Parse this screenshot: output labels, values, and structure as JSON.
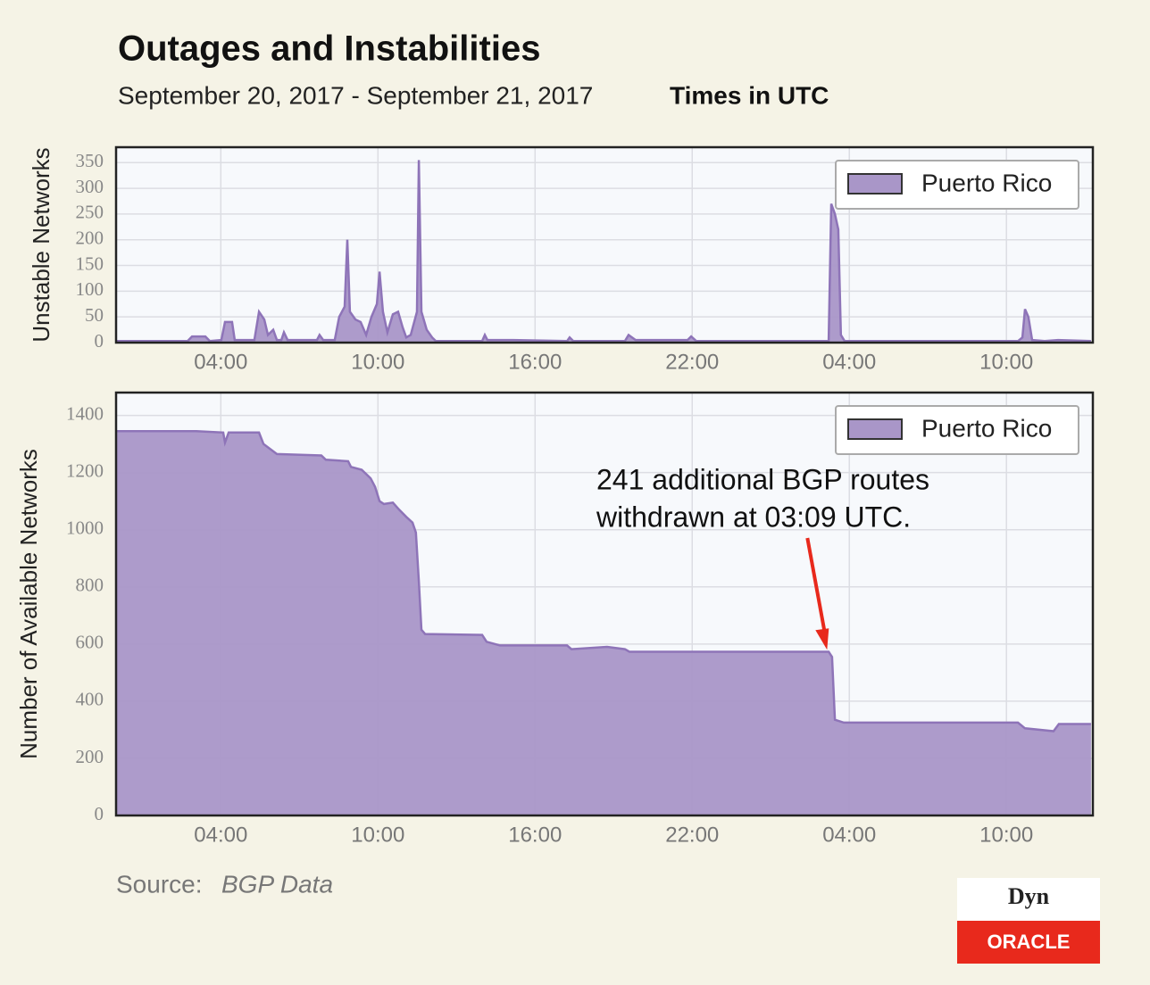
{
  "header": {
    "title": "Outages and Instabilities",
    "subtitle": "September 20, 2017 - September 21, 2017",
    "note": "Times in UTC"
  },
  "source": {
    "label": "Source:",
    "text": "BGP Data"
  },
  "logo": {
    "top": "Dyn",
    "bottom": "ORACLE"
  },
  "chart_data": [
    {
      "type": "area",
      "y_label": "Unstable Networks",
      "xlim": [
        0,
        37.3
      ],
      "ylim": [
        0,
        380
      ],
      "xticks": [
        {
          "value": 4,
          "label": "04:00"
        },
        {
          "value": 10,
          "label": "10:00"
        },
        {
          "value": 16,
          "label": "16:00"
        },
        {
          "value": 22,
          "label": "22:00"
        },
        {
          "value": 28,
          "label": "04:00"
        },
        {
          "value": 34,
          "label": "10:00"
        }
      ],
      "yticks": [
        0,
        50,
        100,
        150,
        200,
        250,
        300,
        350
      ],
      "grid": true,
      "legend": "upper right",
      "series": [
        {
          "name": "Puerto Rico",
          "color": "#a996c8",
          "x": [
            0,
            2.73,
            2.9,
            3.41,
            3.58,
            4.02,
            4.16,
            4.43,
            4.53,
            5.28,
            5.46,
            5.66,
            5.8,
            6.0,
            6.14,
            6.31,
            6.41,
            6.55,
            7.67,
            7.77,
            7.91,
            8.35,
            8.52,
            8.73,
            8.83,
            8.93,
            9.14,
            9.34,
            9.55,
            9.75,
            9.96,
            10.06,
            10.19,
            10.36,
            10.57,
            10.77,
            10.94,
            11.08,
            11.25,
            11.49,
            11.56,
            11.66,
            11.86,
            12.07,
            12.21,
            13.98,
            14.08,
            14.18,
            15.17,
            17.22,
            17.32,
            17.46,
            19.43,
            19.57,
            19.84,
            21.82,
            21.96,
            22.16,
            27.21,
            27.31,
            27.45,
            27.58,
            27.68,
            27.82,
            34.44,
            34.61,
            34.71,
            34.84,
            34.98,
            35.46,
            35.97,
            37.23
          ],
          "values": [
            3,
            3,
            12,
            12,
            3,
            5,
            40,
            40,
            5,
            5,
            60,
            45,
            15,
            25,
            5,
            5,
            20,
            5,
            5,
            15,
            5,
            5,
            50,
            70,
            200,
            60,
            45,
            40,
            15,
            50,
            75,
            138,
            60,
            20,
            55,
            60,
            30,
            10,
            15,
            60,
            355,
            60,
            25,
            10,
            3,
            3,
            15,
            5,
            5,
            3,
            10,
            3,
            3,
            15,
            5,
            5,
            12,
            3,
            3,
            270,
            250,
            220,
            15,
            3,
            3,
            10,
            65,
            50,
            5,
            3,
            5,
            3
          ]
        }
      ]
    },
    {
      "type": "area",
      "y_label": "Number of Available Networks",
      "xlim": [
        0,
        37.3
      ],
      "ylim": [
        0,
        1480
      ],
      "xticks": [
        {
          "value": 4,
          "label": "04:00"
        },
        {
          "value": 10,
          "label": "10:00"
        },
        {
          "value": 16,
          "label": "16:00"
        },
        {
          "value": 22,
          "label": "22:00"
        },
        {
          "value": 28,
          "label": "04:00"
        },
        {
          "value": 34,
          "label": "10:00"
        }
      ],
      "yticks": [
        0,
        200,
        400,
        600,
        800,
        1000,
        1200,
        1400
      ],
      "grid": true,
      "legend": "upper right",
      "annotation": {
        "lines": [
          "241 additional BGP routes",
          "withdrawn at 03:09 UTC."
        ],
        "x": 27.15,
        "y": 580,
        "color": "#e8291c"
      },
      "series": [
        {
          "name": "Puerto Rico",
          "color": "#a996c8",
          "x": [
            0,
            3.07,
            4.09,
            4.16,
            4.3,
            5.46,
            5.63,
            6.14,
            7.84,
            8.01,
            8.86,
            8.97,
            9.38,
            9.72,
            9.89,
            10.06,
            10.23,
            10.57,
            10.81,
            11.08,
            11.32,
            11.45,
            11.56,
            11.66,
            11.8,
            13.98,
            14.15,
            14.66,
            17.22,
            17.39,
            18.75,
            19.43,
            19.6,
            27.21,
            27.34,
            27.45,
            27.79,
            34.44,
            34.71,
            35.8,
            36.0,
            37.23
          ],
          "values": [
            1345,
            1345,
            1340,
            1305,
            1340,
            1340,
            1300,
            1265,
            1260,
            1245,
            1240,
            1220,
            1210,
            1180,
            1150,
            1100,
            1090,
            1095,
            1070,
            1045,
            1025,
            990,
            820,
            650,
            635,
            632,
            608,
            595,
            595,
            582,
            590,
            582,
            573,
            573,
            555,
            335,
            325,
            325,
            305,
            295,
            320,
            320
          ]
        }
      ]
    }
  ]
}
